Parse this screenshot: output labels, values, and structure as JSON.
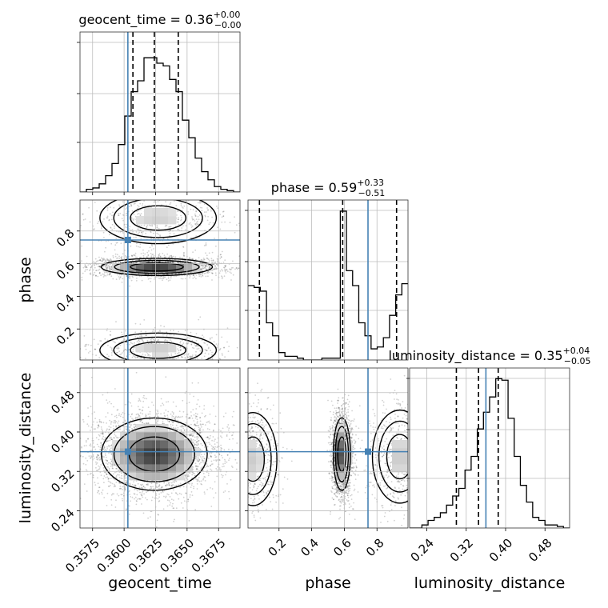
{
  "chart_data": {
    "type": "corner",
    "truth_color": "#4682b4",
    "hist_color": "#000000",
    "grid": true,
    "parameters": [
      {
        "name": "geocent_time",
        "label": "geocent_time",
        "range": [
          0.3565,
          0.3692
        ],
        "ticks": [
          0.3575,
          0.36,
          0.3625,
          0.365,
          0.3675
        ],
        "tick_labels": [
          "0.3575",
          "0.3600",
          "0.3625",
          "0.3650",
          "0.3675"
        ],
        "truth": 0.3603,
        "quantiles": [
          0.3607,
          0.3624,
          0.3643
        ],
        "title": {
          "prefix": "geocent_time = 0.36",
          "sup": "+0.00",
          "sub": "−0.00"
        }
      },
      {
        "name": "phase",
        "label": "phase",
        "range": [
          0.01,
          0.99
        ],
        "ticks": [
          0.2,
          0.4,
          0.6,
          0.8
        ],
        "tick_labels": [
          "0.2",
          "0.4",
          "0.6",
          "0.8"
        ],
        "truth": 0.745,
        "quantiles": [
          0.08,
          0.59,
          0.92
        ],
        "title": {
          "prefix": "phase = 0.59",
          "sup": "+0.33",
          "sub": "−0.51"
        }
      },
      {
        "name": "luminosity_distance",
        "label": "luminosity_distance",
        "range": [
          0.205,
          0.53
        ],
        "ticks": [
          0.24,
          0.32,
          0.4,
          0.48
        ],
        "tick_labels": [
          "0.24",
          "0.32",
          "0.40",
          "0.48"
        ],
        "truth": 0.36,
        "quantiles": [
          0.3,
          0.345,
          0.385
        ],
        "title": {
          "prefix": "luminosity_distance = 0.35",
          "sup": "+0.04",
          "sub": "−0.05"
        }
      }
    ],
    "histograms": [
      {
        "param": "geocent_time",
        "counts": [
          0.0,
          0.02,
          0.03,
          0.06,
          0.12,
          0.21,
          0.35,
          0.56,
          0.74,
          0.82,
          0.99,
          0.99,
          0.95,
          0.93,
          0.83,
          0.74,
          0.53,
          0.4,
          0.25,
          0.15,
          0.09,
          0.04,
          0.02,
          0.01,
          0.0
        ],
        "ylim": [
          0,
          1.18
        ]
      },
      {
        "param": "phase",
        "counts": [
          0.4,
          0.39,
          0.37,
          0.2,
          0.13,
          0.04,
          0.02,
          0.02,
          0.01,
          0.0,
          0.0,
          0.0,
          0.01,
          0.01,
          0.01,
          0.8,
          0.48,
          0.4,
          0.2,
          0.13,
          0.06,
          0.07,
          0.12,
          0.24,
          0.35,
          0.41
        ],
        "ylim": [
          0,
          0.86
        ]
      },
      {
        "param": "luminosity_distance",
        "counts": [
          0.0,
          0.0,
          0.02,
          0.05,
          0.07,
          0.1,
          0.15,
          0.21,
          0.26,
          0.38,
          0.47,
          0.65,
          0.76,
          0.86,
          0.98,
          0.97,
          0.72,
          0.47,
          0.28,
          0.17,
          0.07,
          0.05,
          0.02,
          0.02,
          0.01,
          0.0
        ],
        "ylim": [
          0,
          1.05
        ]
      }
    ],
    "joint": [
      {
        "x": "geocent_time",
        "y": "phase",
        "modes": [
          {
            "cx": 0.3626,
            "cy": 0.58,
            "sx": 0.0021,
            "sy": 0.025,
            "w": 1.0
          },
          {
            "cx": 0.3627,
            "cy": 0.88,
            "sx": 0.0022,
            "sy": 0.075,
            "w": 0.32
          },
          {
            "cx": 0.3627,
            "cy": 0.07,
            "sx": 0.0022,
            "sy": 0.05,
            "w": 0.34
          }
        ]
      },
      {
        "x": "geocent_time",
        "y": "luminosity_distance",
        "modes": [
          {
            "cx": 0.3624,
            "cy": 0.355,
            "sx": 0.002,
            "sy": 0.035,
            "w": 1.0
          }
        ]
      },
      {
        "x": "phase",
        "y": "luminosity_distance",
        "modes": [
          {
            "cx": 0.585,
            "cy": 0.355,
            "sx": 0.025,
            "sy": 0.035,
            "w": 1.0
          },
          {
            "cx": 0.94,
            "cy": 0.35,
            "sx": 0.08,
            "sy": 0.045,
            "w": 0.35
          },
          {
            "cx": 0.04,
            "cy": 0.345,
            "sx": 0.07,
            "sy": 0.045,
            "w": 0.34
          }
        ]
      }
    ]
  }
}
